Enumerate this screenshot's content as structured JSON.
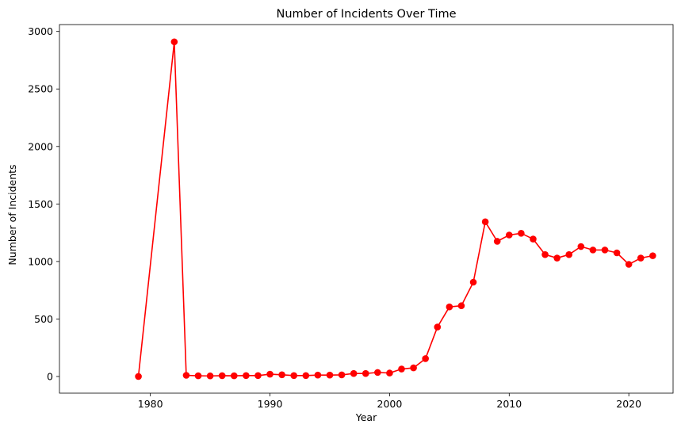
{
  "chart_data": {
    "type": "line",
    "title": "Number of Incidents Over Time",
    "xlabel": "Year",
    "ylabel": "Number of Incidents",
    "xlim": [
      1972.4,
      2023.7
    ],
    "ylim": [
      -145,
      3060
    ],
    "x_ticks": [
      1980,
      1990,
      2000,
      2010,
      2020
    ],
    "y_ticks": [
      0,
      500,
      1000,
      1500,
      2000,
      2500,
      3000
    ],
    "grid": false,
    "legend": "none",
    "series": [
      {
        "color": "#ff0000",
        "marker": "circle",
        "x": [
          1979,
          1982,
          1983,
          1984,
          1985,
          1986,
          1987,
          1988,
          1989,
          1990,
          1991,
          1992,
          1993,
          1994,
          1995,
          1996,
          1997,
          1998,
          1999,
          2000,
          2001,
          2002,
          2003,
          2004,
          2005,
          2006,
          2007,
          2008,
          2009,
          2010,
          2011,
          2012,
          2013,
          2014,
          2015,
          2016,
          2017,
          2018,
          2019,
          2020,
          2021,
          2022
        ],
        "y": [
          0,
          2910,
          10,
          6,
          5,
          7,
          6,
          8,
          8,
          20,
          15,
          8,
          8,
          12,
          12,
          14,
          26,
          26,
          35,
          30,
          65,
          75,
          155,
          430,
          605,
          615,
          820,
          1345,
          1175,
          1230,
          1245,
          1195,
          1060,
          1030,
          1060,
          1130,
          1100,
          1100,
          1075,
          975,
          1030,
          1050
        ]
      }
    ]
  }
}
